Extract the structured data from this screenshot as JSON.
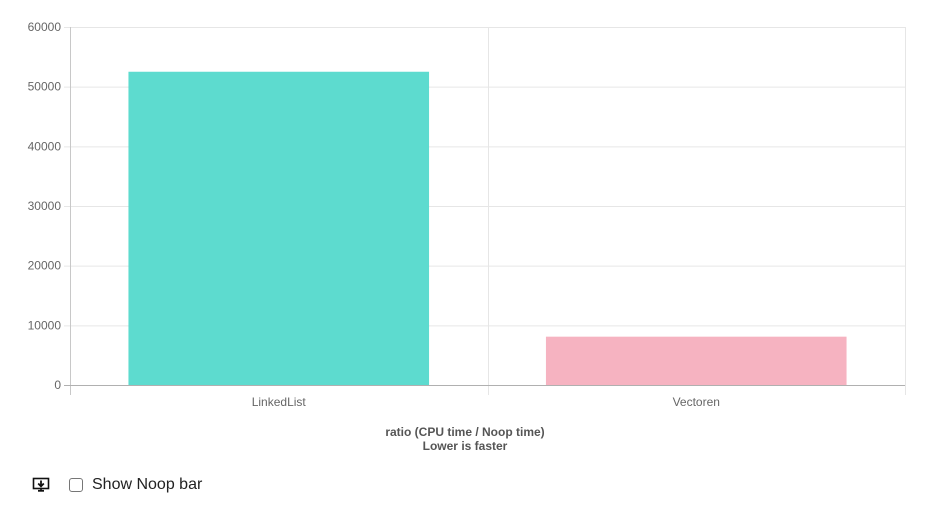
{
  "chart_data": {
    "type": "bar",
    "categories": [
      "LinkedList",
      "Vectoren"
    ],
    "values": [
      52500,
      8100
    ],
    "colors": [
      "#5ddbcf",
      "#f6b3c1"
    ],
    "ylim": [
      0,
      60000
    ],
    "yticks": [
      0,
      10000,
      20000,
      30000,
      40000,
      50000,
      60000
    ],
    "xlabel": [
      "ratio (CPU time / Noop time)",
      "Lower is faster"
    ],
    "ylabel": "",
    "grid": true,
    "legend": "none"
  },
  "controls": {
    "download_icon": "download-icon",
    "show_noop_label": "Show Noop bar",
    "show_noop_checked": false
  }
}
